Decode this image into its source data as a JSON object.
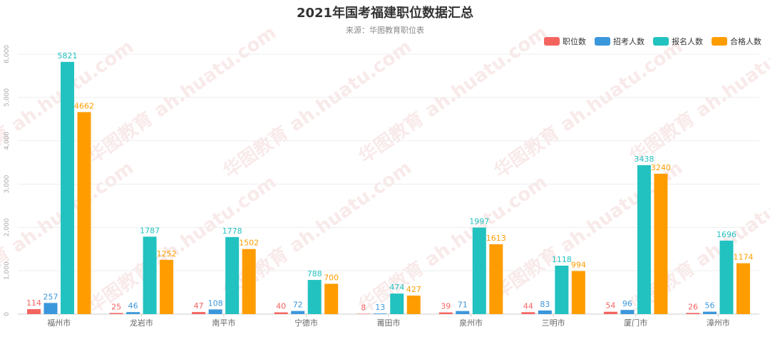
{
  "title": "2021年国考福建职位数据汇总",
  "subtitle": "来源：华图教育职位表",
  "watermark": "华图教育 ah.huatu.com",
  "chart_data": {
    "type": "bar",
    "categories": [
      "福州市",
      "龙岩市",
      "南平市",
      "宁德市",
      "莆田市",
      "泉州市",
      "三明市",
      "厦门市",
      "漳州市"
    ],
    "series": [
      {
        "name": "职位数",
        "color": "#f4645f",
        "values": [
          114,
          25,
          47,
          40,
          8,
          39,
          44,
          54,
          26
        ]
      },
      {
        "name": "招考人数",
        "color": "#3b97db",
        "values": [
          257,
          46,
          108,
          72,
          13,
          71,
          83,
          96,
          56
        ]
      },
      {
        "name": "报名人数",
        "color": "#22c2c0",
        "values": [
          5821,
          1787,
          1778,
          788,
          474,
          1997,
          1118,
          3438,
          1696
        ]
      },
      {
        "name": "合格人数",
        "color": "#ff9d00",
        "values": [
          4662,
          1252,
          1502,
          700,
          427,
          1613,
          994,
          3240,
          1174
        ]
      }
    ],
    "ylim": [
      0,
      6000
    ],
    "yticks": [
      "0",
      "1,000",
      "2,000",
      "3,000",
      "4,000",
      "5,000",
      "6,000"
    ],
    "grid": true,
    "legend_position": "top-right"
  }
}
